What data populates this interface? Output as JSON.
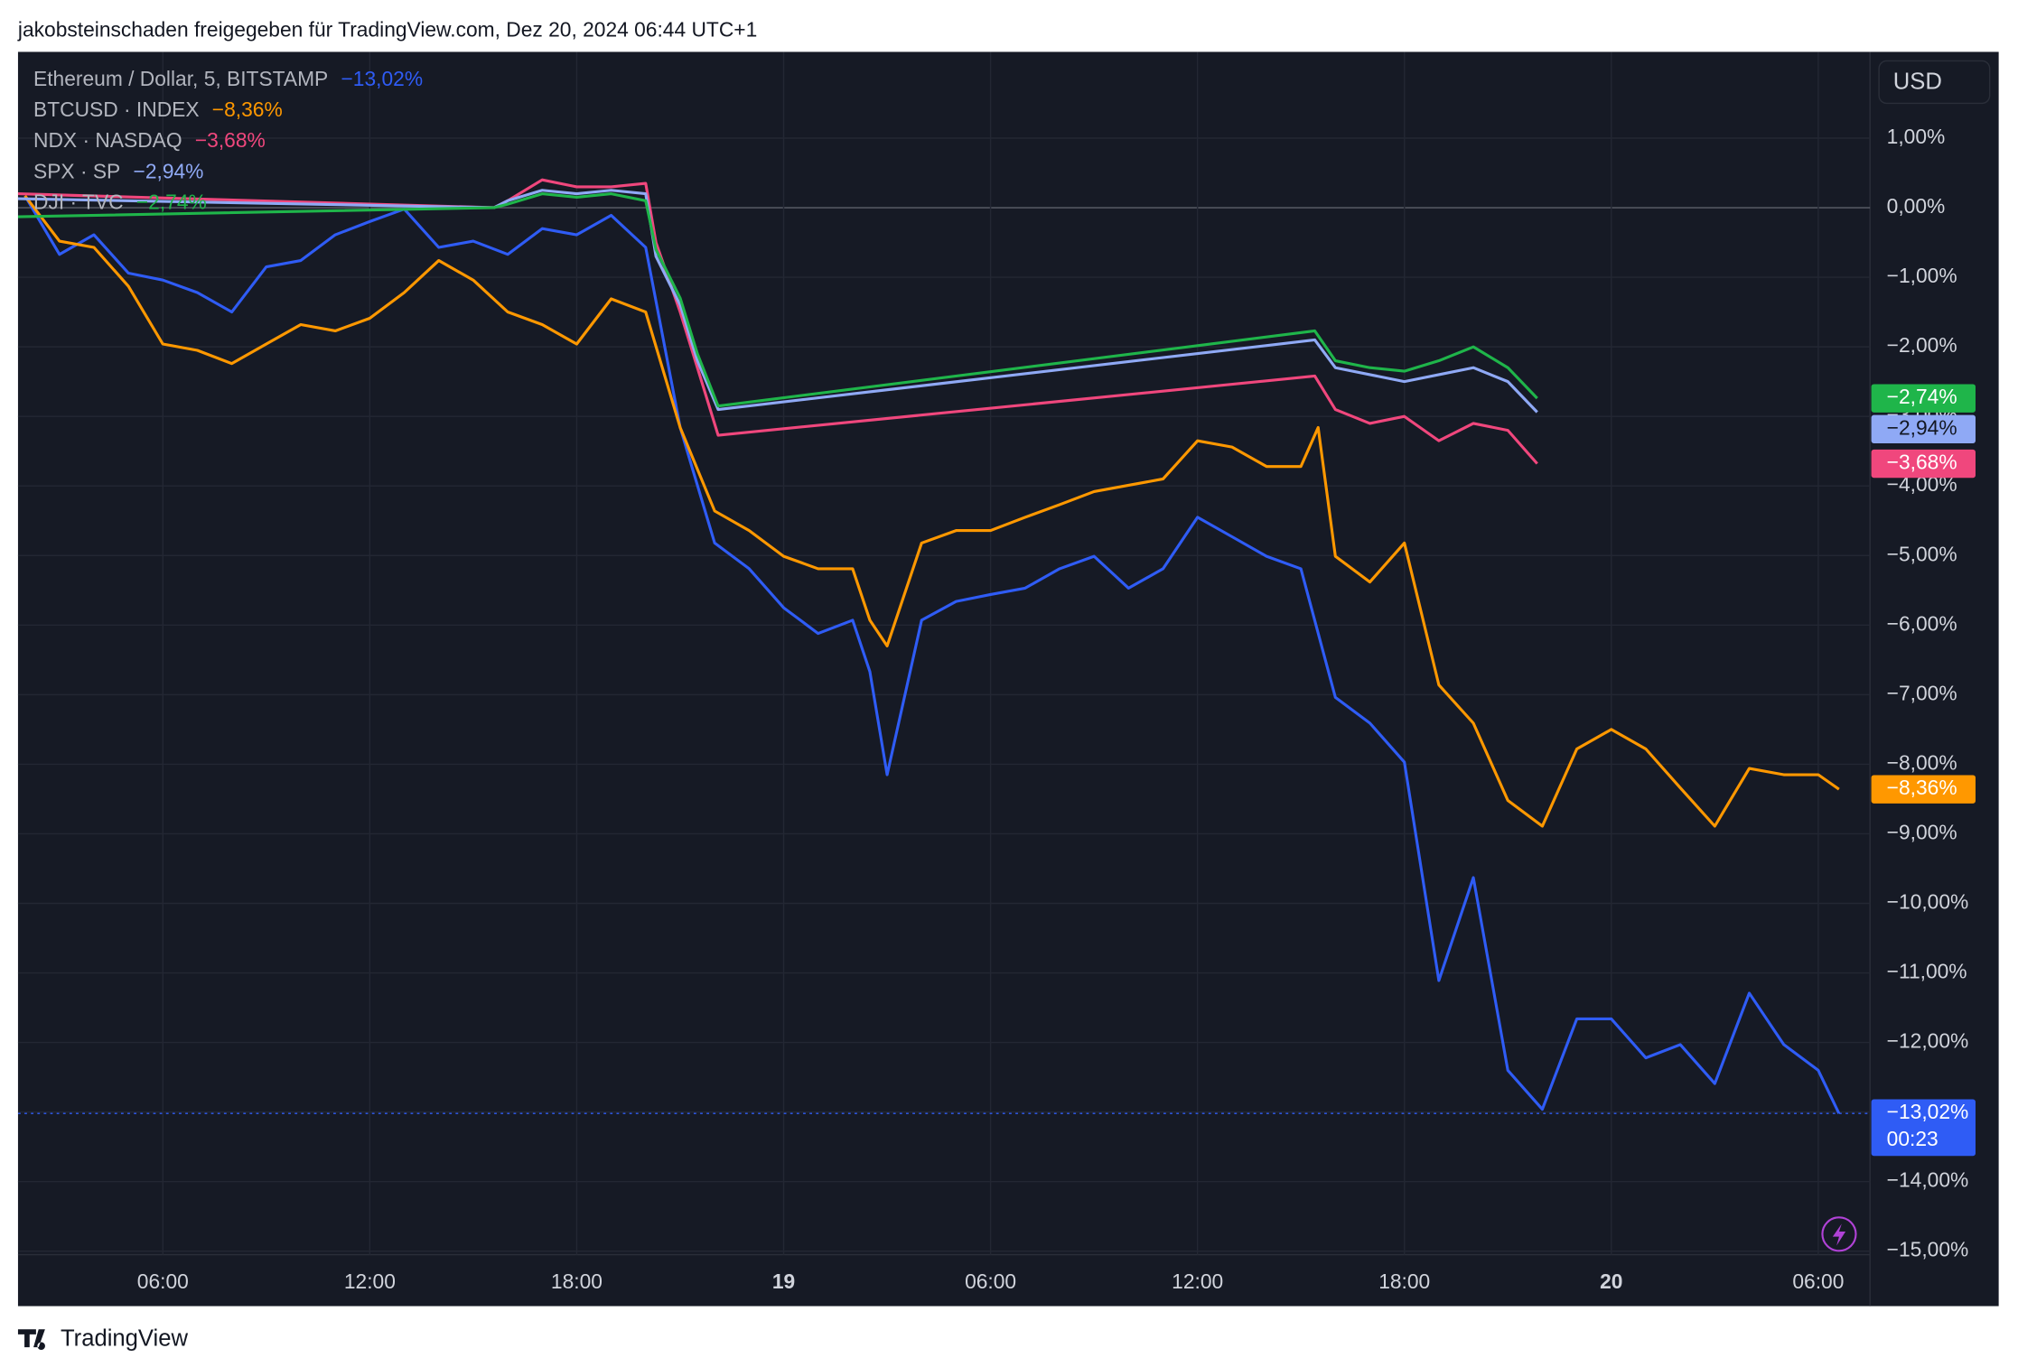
{
  "header": {
    "title": "jakobsteinschaden freigegeben für TradingView.com, Dez 20, 2024 06:44 UTC+1"
  },
  "currency_button": "USD",
  "footer": {
    "brand": "TradingView"
  },
  "chart_data": {
    "type": "line",
    "xlim": [
      1.8,
      55.5
    ],
    "ylim": [
      -15.05,
      2.24
    ],
    "xticks": [
      {
        "value": 6,
        "label": "06:00"
      },
      {
        "value": 12,
        "label": "12:00"
      },
      {
        "value": 18,
        "label": "18:00"
      },
      {
        "value": 24,
        "label": "19"
      },
      {
        "value": 30,
        "label": "06:00"
      },
      {
        "value": 36,
        "label": "12:00"
      },
      {
        "value": 42,
        "label": "18:00"
      },
      {
        "value": 48,
        "label": "20"
      },
      {
        "value": 54,
        "label": "06:00"
      }
    ],
    "yticks": [
      {
        "value": 1,
        "label": "1,00%"
      },
      {
        "value": 0,
        "label": "0,00%"
      },
      {
        "value": -1,
        "label": "−1,00%"
      },
      {
        "value": -2,
        "label": "−2,00%"
      },
      {
        "value": -3,
        "label": "−3,00%"
      },
      {
        "value": -4,
        "label": "−4,00%"
      },
      {
        "value": -5,
        "label": "−5,00%"
      },
      {
        "value": -6,
        "label": "−6,00%"
      },
      {
        "value": -7,
        "label": "−7,00%"
      },
      {
        "value": -8,
        "label": "−8,00%"
      },
      {
        "value": -9,
        "label": "−9,00%"
      },
      {
        "value": -10,
        "label": "−10,00%"
      },
      {
        "value": -11,
        "label": "−11,00%"
      },
      {
        "value": -12,
        "label": "−12,00%"
      },
      {
        "value": -13,
        "label": "−13,00%"
      },
      {
        "value": -14,
        "label": "−14,00%"
      },
      {
        "value": -15,
        "label": "−15,00%"
      }
    ],
    "grid": true,
    "countdown": "00:23",
    "series": [
      {
        "name": "Ethereum / Dollar, 5, BITSTAMP",
        "color": "#2f5cf5",
        "last_label": "−13,02%",
        "x": [
          2,
          3,
          4,
          5,
          6,
          7,
          8,
          9,
          10,
          11,
          12,
          13,
          14,
          15,
          16,
          17,
          18,
          19,
          20,
          21,
          22,
          23,
          24,
          25,
          26,
          26.5,
          27,
          28,
          29,
          30,
          31,
          32,
          33,
          34,
          35,
          36,
          37,
          38,
          39,
          40,
          41,
          42,
          43,
          44,
          45,
          46,
          47,
          48,
          49,
          50,
          51,
          52,
          53,
          54,
          54.6
        ],
        "values": [
          0.17,
          -0.67,
          -0.39,
          -0.94,
          -1.04,
          -1.22,
          -1.5,
          -0.85,
          -0.76,
          -0.39,
          -0.2,
          -0.02,
          -0.57,
          -0.48,
          -0.67,
          -0.3,
          -0.39,
          -0.11,
          -0.57,
          -3.16,
          -4.82,
          -5.19,
          -5.75,
          -6.12,
          -5.93,
          -6.67,
          -8.15,
          -5.93,
          -5.66,
          -5.56,
          -5.47,
          -5.19,
          -5.01,
          -5.47,
          -5.19,
          -4.45,
          -4.73,
          -5.01,
          -5.19,
          -7.04,
          -7.41,
          -7.97,
          -11.11,
          -9.63,
          -12.4,
          -12.96,
          -11.66,
          -11.66,
          -12.22,
          -12.03,
          -12.59,
          -11.29,
          -12.03,
          -12.4,
          -13.02
        ]
      },
      {
        "name": "BTCUSD · INDEX",
        "color": "#ff9800",
        "last_label": "−8,36%",
        "x": [
          2,
          3,
          4,
          5,
          6,
          7,
          8,
          9,
          10,
          11,
          12,
          13,
          14,
          15,
          16,
          17,
          18,
          19,
          20,
          21,
          22,
          23,
          24,
          25,
          26,
          26.5,
          27,
          28,
          29,
          30,
          31,
          32,
          33,
          34,
          35,
          36,
          37,
          38,
          39,
          39.5,
          40,
          41,
          42,
          43,
          44,
          45,
          46,
          47,
          48,
          49,
          50,
          51,
          52,
          53,
          54,
          54.6
        ],
        "values": [
          0.17,
          -0.48,
          -0.57,
          -1.13,
          -1.96,
          -2.05,
          -2.24,
          -1.96,
          -1.68,
          -1.77,
          -1.59,
          -1.22,
          -0.76,
          -1.04,
          -1.5,
          -1.68,
          -1.96,
          -1.31,
          -1.5,
          -3.16,
          -4.36,
          -4.64,
          -5.01,
          -5.19,
          -5.19,
          -5.93,
          -6.3,
          -4.82,
          -4.64,
          -4.64,
          -4.45,
          -4.27,
          -4.08,
          -3.99,
          -3.9,
          -3.35,
          -3.44,
          -3.72,
          -3.72,
          -3.16,
          -5.01,
          -5.38,
          -4.82,
          -6.86,
          -7.41,
          -8.52,
          -8.89,
          -7.78,
          -7.5,
          -7.78,
          -8.34,
          -8.89,
          -8.06,
          -8.15,
          -8.15,
          -8.36
        ]
      },
      {
        "name": "NDX · NASDAQ",
        "color": "#f0477d",
        "last_label": "−3,68%",
        "x": [
          1.8,
          15.6,
          16,
          17,
          18,
          19,
          20,
          20.3,
          21,
          21.5,
          22.1,
          39.4,
          40,
          41,
          42,
          43,
          44,
          45,
          45.85
        ],
        "values": [
          0.2,
          0,
          0.1,
          0.4,
          0.3,
          0.3,
          0.35,
          -0.5,
          -1.5,
          -2.3,
          -3.27,
          -2.42,
          -2.9,
          -3.1,
          -3.0,
          -3.35,
          -3.1,
          -3.2,
          -3.68
        ]
      },
      {
        "name": "SPX · SP",
        "color": "#8fa9f5",
        "last_label": "−2,94%",
        "x": [
          1.8,
          15.6,
          16,
          17,
          18,
          19,
          20,
          20.3,
          21,
          21.5,
          22.1,
          39.4,
          40,
          41,
          42,
          43,
          44,
          45,
          45.85
        ],
        "values": [
          0.13,
          0,
          0.1,
          0.25,
          0.2,
          0.25,
          0.2,
          -0.7,
          -1.4,
          -2.2,
          -2.9,
          -1.9,
          -2.3,
          -2.4,
          -2.5,
          -2.4,
          -2.3,
          -2.5,
          -2.94
        ]
      },
      {
        "name": "DJI · TVC",
        "color": "#1fb54a",
        "last_label": "−2,74%",
        "x": [
          1.8,
          15.6,
          16,
          17,
          18,
          19,
          20,
          20.3,
          21,
          21.5,
          22.1,
          39.4,
          40,
          41,
          42,
          43,
          44,
          45,
          45.85
        ],
        "values": [
          -0.13,
          0,
          0.05,
          0.2,
          0.15,
          0.2,
          0.1,
          -0.6,
          -1.3,
          -2.1,
          -2.85,
          -1.77,
          -2.2,
          -2.3,
          -2.35,
          -2.2,
          -2.0,
          -2.3,
          -2.74
        ]
      }
    ]
  }
}
